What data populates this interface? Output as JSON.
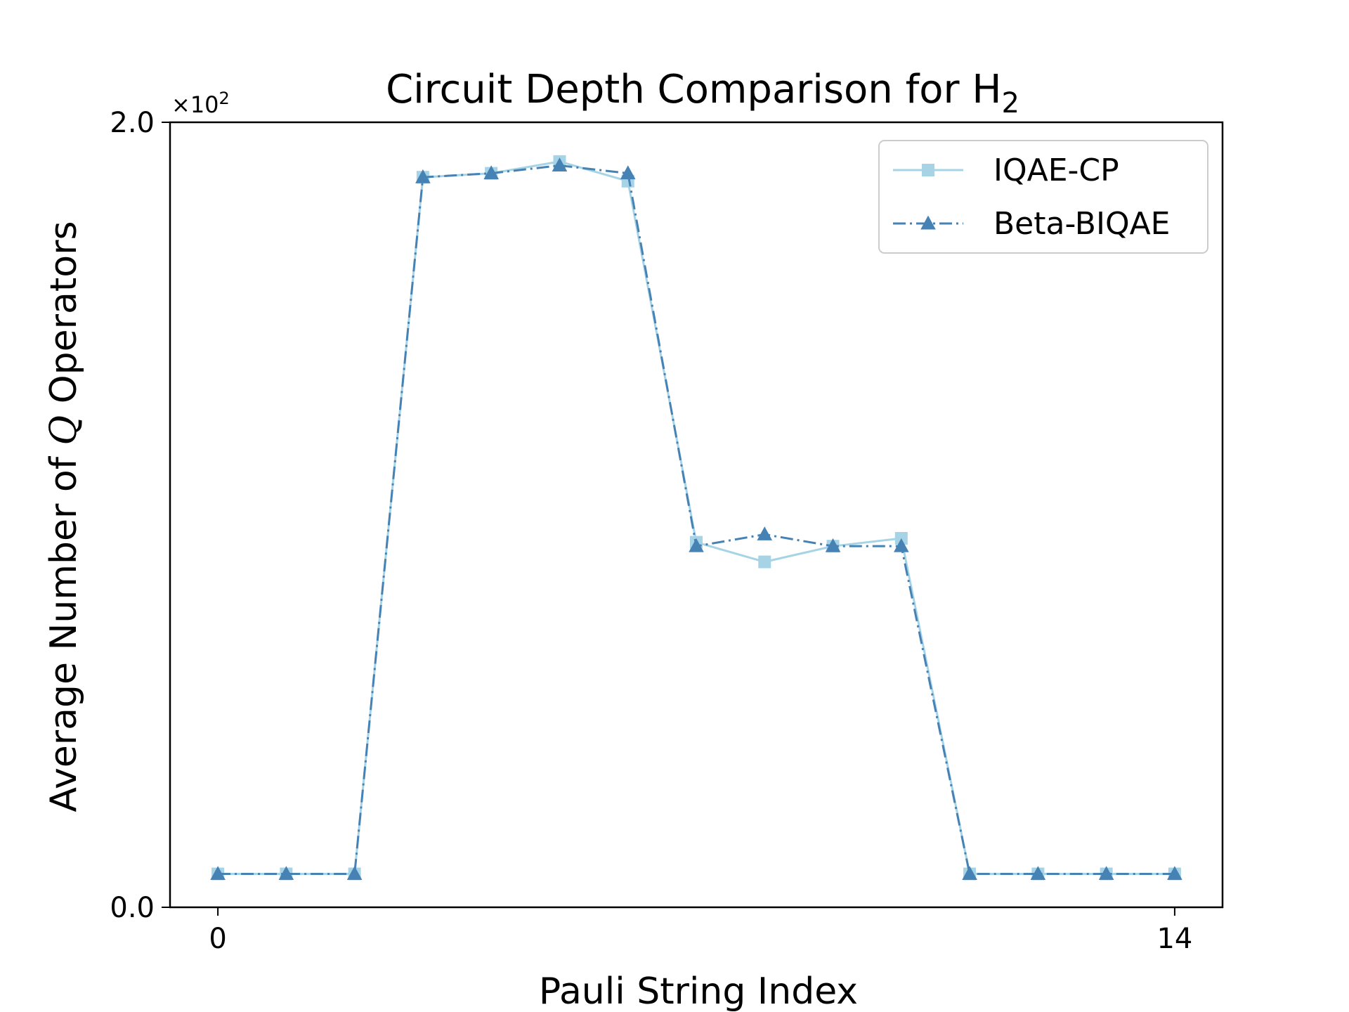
{
  "chart_data": {
    "type": "line",
    "title": "Circuit Depth Comparison for H",
    "title_subscript": "2",
    "xlabel": "Pauli String Index",
    "ylabel_prefix": "Average Number of ",
    "ylabel_symbol": "Q",
    "ylabel_suffix": " Operators",
    "y_multiplier": "×10",
    "y_multiplier_exp": "2",
    "x": [
      0,
      1,
      2,
      3,
      4,
      5,
      6,
      7,
      8,
      9,
      10,
      11,
      12,
      13,
      14
    ],
    "xlim": [
      -0.7,
      14.7
    ],
    "ylim": [
      0.0,
      2.0
    ],
    "x_ticks": [
      0,
      14
    ],
    "x_tick_labels": [
      "0",
      "14"
    ],
    "y_ticks": [
      0.0,
      2.0
    ],
    "y_tick_labels": [
      "0.0",
      "2.0"
    ],
    "grid": false,
    "legend_position": "top-right",
    "series": [
      {
        "name": "IQAE-CP",
        "color": "#a6d4e6",
        "marker": "square",
        "line_style": "solid",
        "values": [
          0.085,
          0.085,
          0.085,
          1.86,
          1.87,
          1.9,
          1.85,
          0.93,
          0.88,
          0.92,
          0.94,
          0.085,
          0.085,
          0.085,
          0.085
        ]
      },
      {
        "name": "Beta-BIQAE",
        "color": "#4682b4",
        "marker": "triangle",
        "line_style": "dashdot",
        "values": [
          0.085,
          0.085,
          0.085,
          1.86,
          1.87,
          1.89,
          1.87,
          0.92,
          0.95,
          0.92,
          0.92,
          0.085,
          0.085,
          0.085,
          0.085
        ]
      }
    ]
  }
}
